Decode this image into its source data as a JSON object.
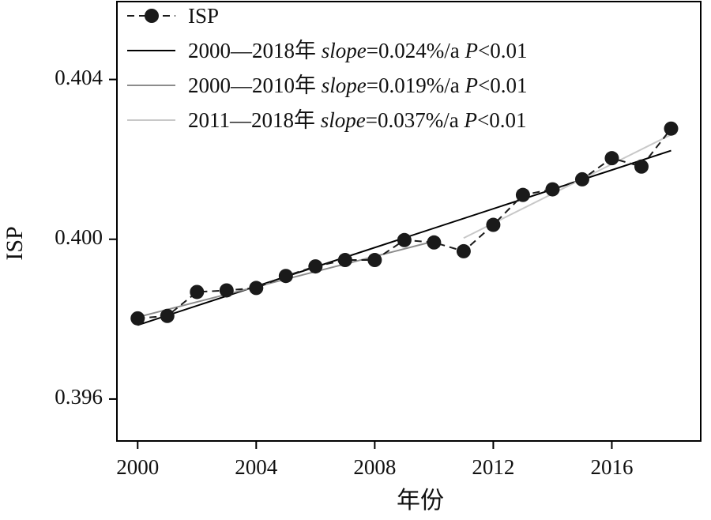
{
  "chart_data": {
    "type": "line",
    "xlabel": "年份",
    "ylabel": "ISP",
    "xlim": [
      1999.3,
      2019.0
    ],
    "ylim": [
      0.39495,
      0.40595
    ],
    "xticks": [
      2000,
      2004,
      2008,
      2012,
      2016
    ],
    "yticks": [
      0.396,
      0.4,
      0.404
    ],
    "ytick_labels": [
      "0.396",
      "0.400",
      "0.404"
    ],
    "grid": false,
    "legend_position": "top-left",
    "colors": {
      "isp": "#1a1a1a",
      "trend_2000_2018": "#000000",
      "trend_2000_2010": "#8c8c8c",
      "trend_2011_2018": "#c8c8c8"
    },
    "series": [
      {
        "name": "ISP",
        "style": "dashed-markers",
        "x": [
          2000,
          2001,
          2002,
          2003,
          2004,
          2005,
          2006,
          2007,
          2008,
          2009,
          2010,
          2011,
          2012,
          2013,
          2014,
          2015,
          2016,
          2017,
          2018
        ],
        "y": [
          0.39802,
          0.39808,
          0.39868,
          0.39872,
          0.39878,
          0.39908,
          0.39932,
          0.39948,
          0.39948,
          0.39998,
          0.39992,
          0.3997,
          0.40036,
          0.40111,
          0.40125,
          0.4015,
          0.40203,
          0.40182,
          0.40277
        ]
      }
    ],
    "trend_lines": [
      {
        "legend_prefix": "2000—2018年 ",
        "legend_slope_word": "slope",
        "legend_slope_value": "=0.024%/a ",
        "legend_p_word": "P",
        "legend_p_value": "<0.01",
        "x_range": [
          2000,
          2018
        ],
        "y_range": [
          0.39785,
          0.40222
        ]
      },
      {
        "legend_prefix": "2000—2010年 ",
        "legend_slope_word": "slope",
        "legend_slope_value": "=0.019%/a ",
        "legend_p_word": "P",
        "legend_p_value": "<0.01",
        "x_range": [
          2000,
          2010
        ],
        "y_range": [
          0.39805,
          0.39995
        ]
      },
      {
        "legend_prefix": "2011—2018年 ",
        "legend_slope_word": "slope",
        "legend_slope_value": "=0.037%/a ",
        "legend_p_word": "P",
        "legend_p_value": "<0.01",
        "x_range": [
          2011,
          2018
        ],
        "y_range": [
          0.40003,
          0.40262
        ]
      }
    ]
  }
}
